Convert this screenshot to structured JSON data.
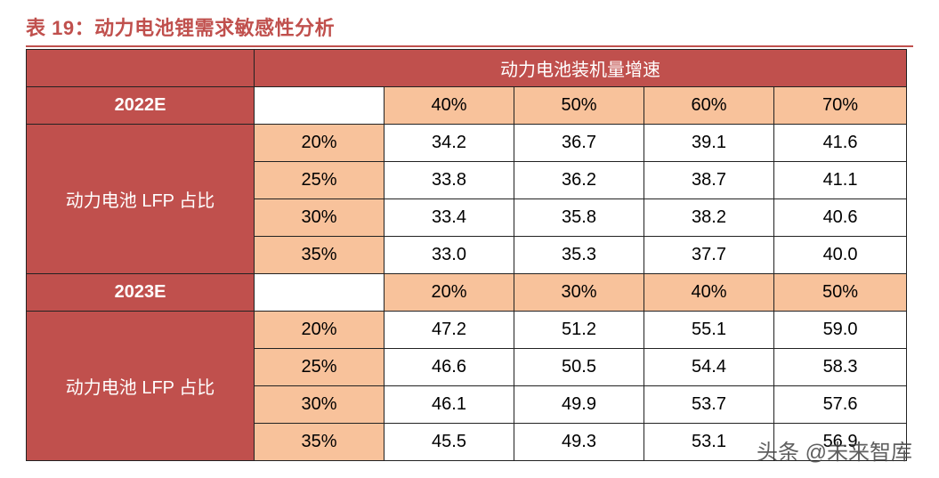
{
  "title": "表 19：动力电池锂需求敏感性分析",
  "header": {
    "growth_header": "动力电池装机量增速"
  },
  "blocks": [
    {
      "year": "2022E",
      "growth_rates": [
        "40%",
        "50%",
        "60%",
        "70%"
      ],
      "row_label": "动力电池 LFP 占比",
      "rows": [
        {
          "share": "20%",
          "values": [
            "34.2",
            "36.7",
            "39.1",
            "41.6"
          ]
        },
        {
          "share": "25%",
          "values": [
            "33.8",
            "36.2",
            "38.7",
            "41.1"
          ]
        },
        {
          "share": "30%",
          "values": [
            "33.4",
            "35.8",
            "38.2",
            "40.6"
          ]
        },
        {
          "share": "35%",
          "values": [
            "33.0",
            "35.3",
            "37.7",
            "40.0"
          ]
        }
      ]
    },
    {
      "year": "2023E",
      "growth_rates": [
        "20%",
        "30%",
        "40%",
        "50%"
      ],
      "row_label": "动力电池 LFP 占比",
      "rows": [
        {
          "share": "20%",
          "values": [
            "47.2",
            "51.2",
            "55.1",
            "59.0"
          ]
        },
        {
          "share": "25%",
          "values": [
            "46.6",
            "50.5",
            "54.4",
            "58.3"
          ]
        },
        {
          "share": "30%",
          "values": [
            "46.1",
            "49.9",
            "53.7",
            "57.6"
          ]
        },
        {
          "share": "35%",
          "values": [
            "45.5",
            "49.3",
            "53.1",
            "56.9"
          ]
        }
      ]
    }
  ],
  "watermark": "头条 @未来智库",
  "colors": {
    "accent_red": "#c0504d",
    "peach": "#f8c29b"
  }
}
